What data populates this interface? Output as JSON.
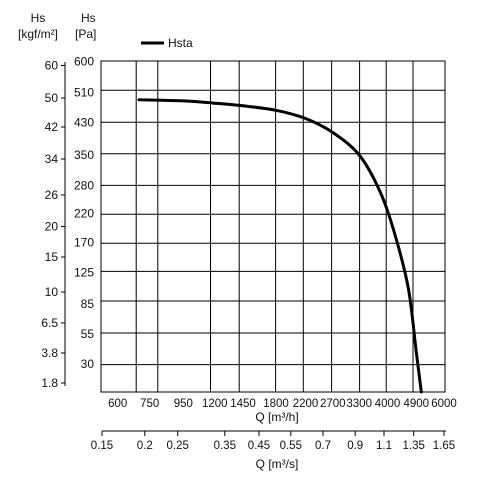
{
  "chart_data": {
    "type": "line",
    "left_axis": {
      "label_line1": "Hs",
      "label_line2": "[kgf/m²]",
      "ticks": [
        "60",
        "50",
        "42",
        "34",
        "26",
        "20",
        "15",
        "10",
        "6.5",
        "3.8",
        "1.8"
      ]
    },
    "inner_axis": {
      "label_line1": "Hs",
      "label_line2": "[Pa]",
      "ticks": [
        "600",
        "510",
        "430",
        "350",
        "280",
        "220",
        "170",
        "125",
        "85",
        "55",
        "30"
      ]
    },
    "x_axis_m3h": {
      "label": "Q [m³/h]",
      "ticks": [
        "600",
        "750",
        "950",
        "1200",
        "1450",
        "1800",
        "2200",
        "2700",
        "3300",
        "4000",
        "4900",
        "6000"
      ]
    },
    "x_axis_m3s": {
      "label": "Q [m³/s]",
      "ticks": [
        "0.15",
        "0.2",
        "0.25",
        "0.35",
        "0.45",
        "0.55",
        "0.7",
        "0.9",
        "1.1",
        "1.35",
        "1.65"
      ]
    },
    "legend": {
      "label": "Hsta",
      "position": "top-left"
    },
    "grid": true,
    "series": [
      {
        "name": "Hsta",
        "color": "#000000",
        "x_unit": "m³/h",
        "y_unit": "Pa",
        "x": [
          700,
          950,
          1200,
          1450,
          1800,
          2200,
          2700,
          3300,
          3800,
          4200,
          4650,
          4900,
          5100
        ],
        "y": [
          490,
          487,
          481,
          474,
          462,
          440,
          405,
          350,
          270,
          190,
          105,
          40,
          0
        ]
      }
    ]
  }
}
